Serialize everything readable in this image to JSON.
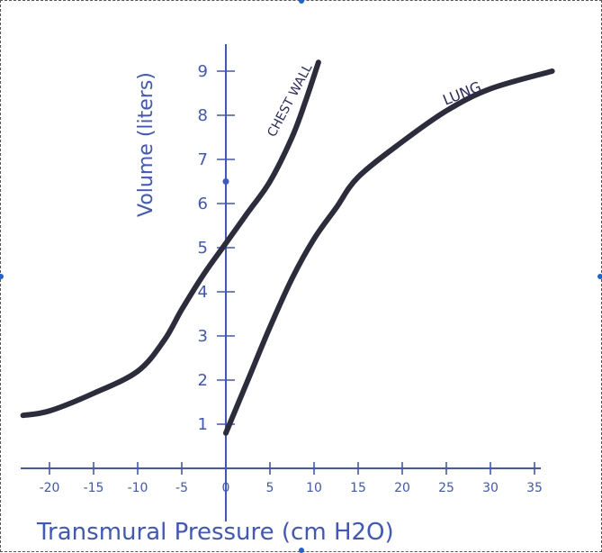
{
  "chart_data": {
    "type": "line",
    "xlabel": "Transmural Pressure (cm H2O)",
    "ylabel": "Volume (liters)",
    "xlim": [
      -23,
      36
    ],
    "ylim": [
      0,
      9.5
    ],
    "x_ticks": [
      -20,
      -15,
      -10,
      -5,
      0,
      5,
      10,
      15,
      20,
      25,
      30,
      35
    ],
    "x_tick_labels": [
      "-20",
      "-15",
      "-10",
      "-5",
      "0",
      "5",
      "10",
      "15",
      "20",
      "25",
      "30",
      "35"
    ],
    "y_ticks": [
      1,
      2,
      3,
      4,
      5,
      6,
      7,
      8,
      9
    ],
    "y_tick_labels": [
      "1",
      "2",
      "3",
      "4",
      "5",
      "6",
      "7",
      "8",
      "9"
    ],
    "marker_point": {
      "x": 0,
      "y": 6.5
    },
    "series": [
      {
        "name": "CHEST WALL",
        "color": "#2c2c3c",
        "points": [
          [
            -23,
            1.2
          ],
          [
            -20,
            1.3
          ],
          [
            -15,
            1.7
          ],
          [
            -10,
            2.2
          ],
          [
            -7,
            2.9
          ],
          [
            -5,
            3.6
          ],
          [
            -2.5,
            4.4
          ],
          [
            0,
            5.1
          ],
          [
            2.5,
            5.8
          ],
          [
            5,
            6.5
          ],
          [
            7.5,
            7.5
          ],
          [
            9,
            8.3
          ],
          [
            10.5,
            9.2
          ]
        ]
      },
      {
        "name": "LUNG",
        "color": "#2c2c3c",
        "points": [
          [
            0,
            0.8
          ],
          [
            2.5,
            2.0
          ],
          [
            5,
            3.2
          ],
          [
            7.5,
            4.3
          ],
          [
            10,
            5.2
          ],
          [
            12.5,
            5.9
          ],
          [
            15,
            6.6
          ],
          [
            20,
            7.4
          ],
          [
            25,
            8.1
          ],
          [
            30,
            8.6
          ],
          [
            37,
            9.0
          ]
        ]
      }
    ],
    "annotations": [
      {
        "text": "CHEST WALL",
        "series": "CHEST WALL"
      },
      {
        "text": "LUNG",
        "series": "LUNG"
      }
    ],
    "colors": {
      "axis": "#3d56c9",
      "curve": "#2c2c3c",
      "marker": "#3d56c9"
    }
  }
}
